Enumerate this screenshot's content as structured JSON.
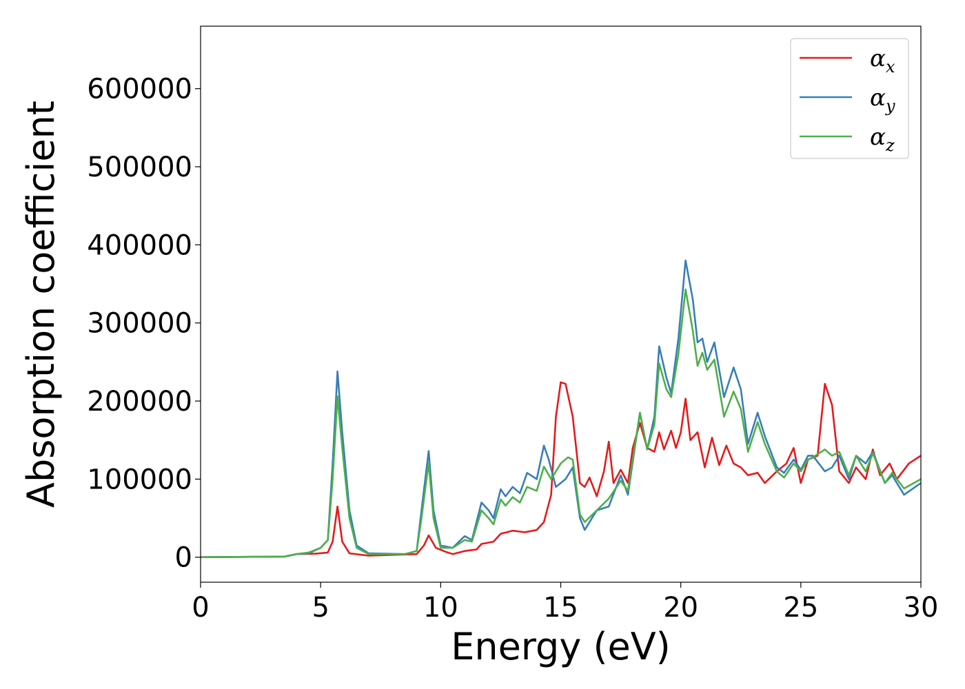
{
  "chart_data": {
    "type": "line",
    "title": "",
    "xlabel": "Energy (eV)",
    "ylabel": "Absorption coefficient",
    "xlim": [
      0,
      30
    ],
    "ylim": [
      -32000,
      680000
    ],
    "xticks": [
      0,
      5,
      10,
      15,
      20,
      25,
      30
    ],
    "yticks": [
      0,
      100000,
      200000,
      300000,
      400000,
      500000,
      600000
    ],
    "grid": false,
    "legend_position": "top-right",
    "series": [
      {
        "name": "α",
        "subscript": "x",
        "color": "#e41a1c",
        "points": [
          [
            0,
            0
          ],
          [
            3.5,
            800
          ],
          [
            4.0,
            4000
          ],
          [
            4.8,
            4500
          ],
          [
            5.3,
            6000
          ],
          [
            5.5,
            20000
          ],
          [
            5.7,
            65000
          ],
          [
            5.9,
            20000
          ],
          [
            6.2,
            5000
          ],
          [
            7,
            2000
          ],
          [
            9,
            4000
          ],
          [
            9.3,
            15000
          ],
          [
            9.5,
            28000
          ],
          [
            9.8,
            12000
          ],
          [
            10.2,
            7000
          ],
          [
            10.5,
            4000
          ],
          [
            11,
            8000
          ],
          [
            11.5,
            10000
          ],
          [
            11.7,
            17000
          ],
          [
            12.2,
            20000
          ],
          [
            12.5,
            30000
          ],
          [
            13,
            34000
          ],
          [
            13.5,
            32000
          ],
          [
            14,
            35000
          ],
          [
            14.3,
            45000
          ],
          [
            14.6,
            80000
          ],
          [
            14.8,
            180000
          ],
          [
            15,
            224000
          ],
          [
            15.2,
            222000
          ],
          [
            15.5,
            180000
          ],
          [
            15.8,
            95000
          ],
          [
            16,
            90000
          ],
          [
            16.2,
            102000
          ],
          [
            16.5,
            78000
          ],
          [
            16.8,
            110000
          ],
          [
            17,
            148000
          ],
          [
            17.2,
            95000
          ],
          [
            17.5,
            112000
          ],
          [
            17.8,
            95000
          ],
          [
            18,
            140000
          ],
          [
            18.3,
            172000
          ],
          [
            18.6,
            140000
          ],
          [
            18.9,
            135000
          ],
          [
            19.1,
            160000
          ],
          [
            19.3,
            138000
          ],
          [
            19.6,
            162000
          ],
          [
            19.8,
            140000
          ],
          [
            20,
            160000
          ],
          [
            20.2,
            203000
          ],
          [
            20.4,
            150000
          ],
          [
            20.7,
            160000
          ],
          [
            21,
            115000
          ],
          [
            21.3,
            153000
          ],
          [
            21.6,
            118000
          ],
          [
            21.9,
            143000
          ],
          [
            22.2,
            120000
          ],
          [
            22.5,
            115000
          ],
          [
            22.8,
            105000
          ],
          [
            23.2,
            108000
          ],
          [
            23.5,
            95000
          ],
          [
            24,
            110000
          ],
          [
            24.4,
            120000
          ],
          [
            24.7,
            140000
          ],
          [
            25,
            95000
          ],
          [
            25.3,
            125000
          ],
          [
            25.7,
            130000
          ],
          [
            26,
            222000
          ],
          [
            26.3,
            195000
          ],
          [
            26.6,
            110000
          ],
          [
            27,
            95000
          ],
          [
            27.3,
            115000
          ],
          [
            27.7,
            100000
          ],
          [
            28,
            138000
          ],
          [
            28.3,
            105000
          ],
          [
            28.7,
            120000
          ],
          [
            29,
            100000
          ],
          [
            29.5,
            120000
          ],
          [
            30,
            130000
          ]
        ]
      },
      {
        "name": "α",
        "subscript": "y",
        "color": "#377eb8",
        "points": [
          [
            0,
            0
          ],
          [
            3.5,
            800
          ],
          [
            4.0,
            4000
          ],
          [
            4.5,
            5000
          ],
          [
            5,
            12000
          ],
          [
            5.3,
            22000
          ],
          [
            5.5,
            120000
          ],
          [
            5.7,
            238000
          ],
          [
            5.9,
            160000
          ],
          [
            6.2,
            60000
          ],
          [
            6.5,
            15000
          ],
          [
            7,
            5000
          ],
          [
            8.5,
            4000
          ],
          [
            9,
            8000
          ],
          [
            9.2,
            60000
          ],
          [
            9.5,
            136000
          ],
          [
            9.7,
            60000
          ],
          [
            10,
            15000
          ],
          [
            10.5,
            12000
          ],
          [
            11,
            27000
          ],
          [
            11.3,
            22000
          ],
          [
            11.7,
            70000
          ],
          [
            12,
            60000
          ],
          [
            12.2,
            50000
          ],
          [
            12.5,
            87000
          ],
          [
            12.7,
            78000
          ],
          [
            13,
            90000
          ],
          [
            13.3,
            82000
          ],
          [
            13.6,
            108000
          ],
          [
            14,
            100000
          ],
          [
            14.3,
            143000
          ],
          [
            14.5,
            125000
          ],
          [
            14.8,
            90000
          ],
          [
            15.2,
            100000
          ],
          [
            15.5,
            115000
          ],
          [
            15.8,
            50000
          ],
          [
            16,
            35000
          ],
          [
            16.5,
            60000
          ],
          [
            17,
            65000
          ],
          [
            17.5,
            105000
          ],
          [
            17.8,
            80000
          ],
          [
            18.3,
            185000
          ],
          [
            18.6,
            138000
          ],
          [
            18.9,
            180000
          ],
          [
            19.1,
            270000
          ],
          [
            19.4,
            230000
          ],
          [
            19.6,
            210000
          ],
          [
            19.9,
            280000
          ],
          [
            20.2,
            380000
          ],
          [
            20.5,
            330000
          ],
          [
            20.7,
            275000
          ],
          [
            20.9,
            280000
          ],
          [
            21.1,
            250000
          ],
          [
            21.4,
            275000
          ],
          [
            21.8,
            205000
          ],
          [
            22.2,
            243000
          ],
          [
            22.5,
            215000
          ],
          [
            22.8,
            145000
          ],
          [
            23.2,
            185000
          ],
          [
            23.5,
            155000
          ],
          [
            24,
            115000
          ],
          [
            24.3,
            108000
          ],
          [
            24.7,
            125000
          ],
          [
            25,
            112000
          ],
          [
            25.3,
            130000
          ],
          [
            25.5,
            130000
          ],
          [
            26,
            110000
          ],
          [
            26.3,
            115000
          ],
          [
            26.6,
            130000
          ],
          [
            27,
            100000
          ],
          [
            27.3,
            130000
          ],
          [
            27.7,
            120000
          ],
          [
            28,
            135000
          ],
          [
            28.5,
            95000
          ],
          [
            28.8,
            105000
          ],
          [
            29.3,
            80000
          ],
          [
            30,
            95000
          ]
        ]
      },
      {
        "name": "α",
        "subscript": "z",
        "color": "#4daf4a",
        "points": [
          [
            0,
            0
          ],
          [
            3.5,
            800
          ],
          [
            4.0,
            4000
          ],
          [
            4.5,
            6000
          ],
          [
            5,
            12000
          ],
          [
            5.3,
            22000
          ],
          [
            5.5,
            100000
          ],
          [
            5.7,
            206000
          ],
          [
            5.9,
            140000
          ],
          [
            6.2,
            50000
          ],
          [
            6.5,
            12000
          ],
          [
            7,
            4000
          ],
          [
            8.5,
            4000
          ],
          [
            9,
            8000
          ],
          [
            9.2,
            50000
          ],
          [
            9.5,
            121000
          ],
          [
            9.7,
            50000
          ],
          [
            10,
            12000
          ],
          [
            10.5,
            12000
          ],
          [
            11,
            22000
          ],
          [
            11.3,
            20000
          ],
          [
            11.7,
            60000
          ],
          [
            12,
            50000
          ],
          [
            12.2,
            42000
          ],
          [
            12.5,
            74000
          ],
          [
            12.7,
            66000
          ],
          [
            13,
            77000
          ],
          [
            13.3,
            70000
          ],
          [
            13.6,
            90000
          ],
          [
            14,
            85000
          ],
          [
            14.3,
            116000
          ],
          [
            14.6,
            100000
          ],
          [
            15,
            120000
          ],
          [
            15.3,
            128000
          ],
          [
            15.5,
            125000
          ],
          [
            15.8,
            55000
          ],
          [
            16,
            45000
          ],
          [
            16.5,
            60000
          ],
          [
            17,
            75000
          ],
          [
            17.5,
            98000
          ],
          [
            17.8,
            85000
          ],
          [
            18.3,
            185000
          ],
          [
            18.6,
            138000
          ],
          [
            18.9,
            170000
          ],
          [
            19.1,
            248000
          ],
          [
            19.4,
            215000
          ],
          [
            19.6,
            205000
          ],
          [
            19.9,
            260000
          ],
          [
            20.2,
            343000
          ],
          [
            20.5,
            290000
          ],
          [
            20.7,
            245000
          ],
          [
            20.9,
            262000
          ],
          [
            21.1,
            240000
          ],
          [
            21.4,
            253000
          ],
          [
            21.8,
            180000
          ],
          [
            22.2,
            212000
          ],
          [
            22.5,
            190000
          ],
          [
            22.8,
            135000
          ],
          [
            23.2,
            173000
          ],
          [
            23.5,
            145000
          ],
          [
            24,
            110000
          ],
          [
            24.3,
            102000
          ],
          [
            24.7,
            120000
          ],
          [
            25,
            110000
          ],
          [
            25.3,
            125000
          ],
          [
            25.5,
            128000
          ],
          [
            26,
            138000
          ],
          [
            26.3,
            130000
          ],
          [
            26.6,
            135000
          ],
          [
            27,
            105000
          ],
          [
            27.3,
            130000
          ],
          [
            27.7,
            110000
          ],
          [
            28,
            133000
          ],
          [
            28.5,
            95000
          ],
          [
            28.8,
            108000
          ],
          [
            29.3,
            88000
          ],
          [
            30,
            100000
          ]
        ]
      }
    ]
  }
}
